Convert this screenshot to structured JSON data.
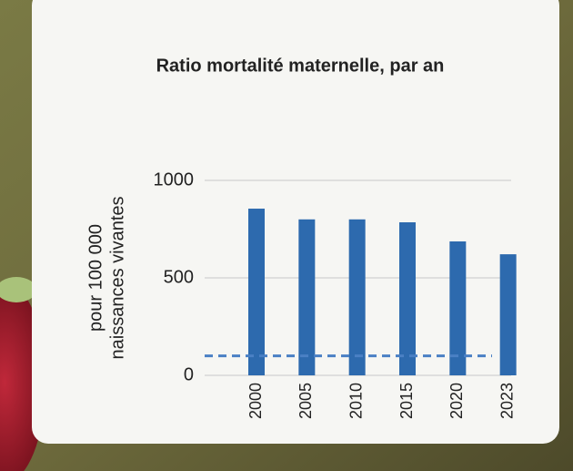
{
  "chart_data": {
    "type": "bar",
    "title": "Ratio mortalité maternelle, par an",
    "y_label": [
      "pour 100 000",
      "naissances vivantes"
    ],
    "categories": [
      "2000",
      "2005",
      "2010",
      "2015",
      "2020",
      "2023"
    ],
    "values": [
      855,
      800,
      800,
      785,
      687,
      621
    ],
    "color": "#2d6aae",
    "ylim": [
      0,
      1000
    ],
    "yticks": [
      0,
      500,
      1000
    ],
    "grid": true,
    "reference_line": 100,
    "reference_color": "#4a80c4"
  }
}
